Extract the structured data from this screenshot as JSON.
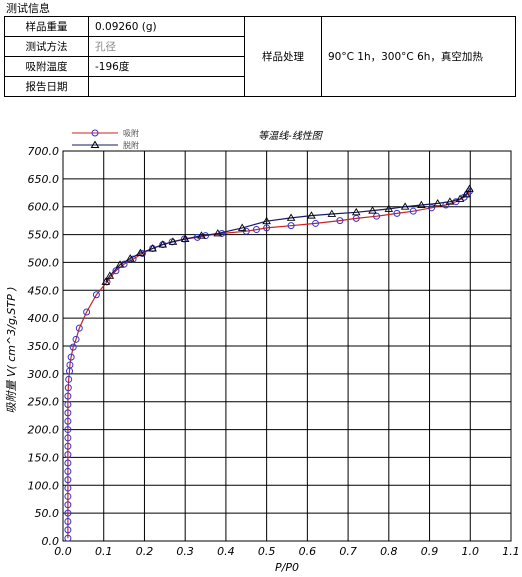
{
  "info": {
    "section_title": "测试信息",
    "rows": [
      {
        "label": "样品重量",
        "value": "0.09260 (g)"
      },
      {
        "label": "测试方法",
        "value": "孔径"
      },
      {
        "label": "吸附温度",
        "value": "-196度"
      },
      {
        "label": "报告日期",
        "value": ""
      }
    ],
    "treatment_label": "样品处理",
    "treatment_value": "90°C 1h，300°C 6h，真空加热"
  },
  "chart_data": {
    "type": "line",
    "title": "等温线-线性图",
    "xlabel": "P/P0",
    "ylabel": "吸附量 V( cm^3/g,STP )",
    "xlim": [
      0.0,
      1.1
    ],
    "ylim": [
      0.0,
      700.0
    ],
    "x_ticks": [
      "0.0",
      "0.1",
      "0.2",
      "0.3",
      "0.4",
      "0.5",
      "0.6",
      "0.7",
      "0.8",
      "0.9",
      "1.0",
      "1.1"
    ],
    "y_ticks": [
      "0.0",
      "50.0",
      "100.0",
      "150.0",
      "200.0",
      "250.0",
      "300.0",
      "350.0",
      "400.0",
      "450.0",
      "500.0",
      "550.0",
      "600.0",
      "650.0",
      "700.0"
    ],
    "grid": true,
    "legend_position": "top-left",
    "series": [
      {
        "name": "吸附",
        "color": "#cc2222",
        "marker_color": "#3333cc",
        "marker": "circle",
        "points": [
          [
            0.012,
            5
          ],
          [
            0.012,
            20
          ],
          [
            0.012,
            35
          ],
          [
            0.012,
            50
          ],
          [
            0.012,
            65
          ],
          [
            0.012,
            80
          ],
          [
            0.012,
            95
          ],
          [
            0.012,
            110
          ],
          [
            0.012,
            125
          ],
          [
            0.012,
            140
          ],
          [
            0.012,
            155
          ],
          [
            0.012,
            170
          ],
          [
            0.012,
            185
          ],
          [
            0.012,
            200
          ],
          [
            0.012,
            215
          ],
          [
            0.012,
            230
          ],
          [
            0.012,
            245
          ],
          [
            0.012,
            260
          ],
          [
            0.013,
            275
          ],
          [
            0.014,
            290
          ],
          [
            0.016,
            305
          ],
          [
            0.017,
            316
          ],
          [
            0.02,
            330
          ],
          [
            0.025,
            348
          ],
          [
            0.032,
            362
          ],
          [
            0.04,
            382
          ],
          [
            0.058,
            411
          ],
          [
            0.082,
            442
          ],
          [
            0.108,
            465
          ],
          [
            0.13,
            485
          ],
          [
            0.15,
            497
          ],
          [
            0.172,
            506
          ],
          [
            0.195,
            516
          ],
          [
            0.22,
            525
          ],
          [
            0.245,
            532
          ],
          [
            0.268,
            537
          ],
          [
            0.298,
            542
          ],
          [
            0.33,
            545
          ],
          [
            0.35,
            548
          ],
          [
            0.39,
            552
          ],
          [
            0.45,
            556
          ],
          [
            0.475,
            559
          ],
          [
            0.5,
            562
          ],
          [
            0.56,
            566
          ],
          [
            0.62,
            570
          ],
          [
            0.68,
            575
          ],
          [
            0.72,
            579
          ],
          [
            0.77,
            583
          ],
          [
            0.82,
            588
          ],
          [
            0.86,
            592
          ],
          [
            0.905,
            598
          ],
          [
            0.94,
            603
          ],
          [
            0.965,
            609
          ],
          [
            0.985,
            617
          ],
          [
            0.993,
            623
          ],
          [
            0.998,
            628
          ]
        ]
      },
      {
        "name": "脱附",
        "color": "#1a1a66",
        "marker_color": "#000000",
        "marker": "triangle",
        "points": [
          [
            0.998,
            632
          ],
          [
            0.99,
            622
          ],
          [
            0.975,
            614
          ],
          [
            0.95,
            609
          ],
          [
            0.92,
            606
          ],
          [
            0.88,
            603
          ],
          [
            0.84,
            600
          ],
          [
            0.8,
            596
          ],
          [
            0.76,
            593
          ],
          [
            0.72,
            590
          ],
          [
            0.66,
            587
          ],
          [
            0.61,
            584
          ],
          [
            0.56,
            580
          ],
          [
            0.5,
            574
          ],
          [
            0.44,
            562
          ],
          [
            0.38,
            552
          ],
          [
            0.34,
            548
          ],
          [
            0.3,
            542
          ],
          [
            0.27,
            537
          ],
          [
            0.245,
            532
          ],
          [
            0.22,
            525
          ],
          [
            0.19,
            517
          ],
          [
            0.165,
            507
          ],
          [
            0.14,
            496
          ],
          [
            0.115,
            476
          ],
          [
            0.105,
            465
          ]
        ]
      }
    ]
  }
}
